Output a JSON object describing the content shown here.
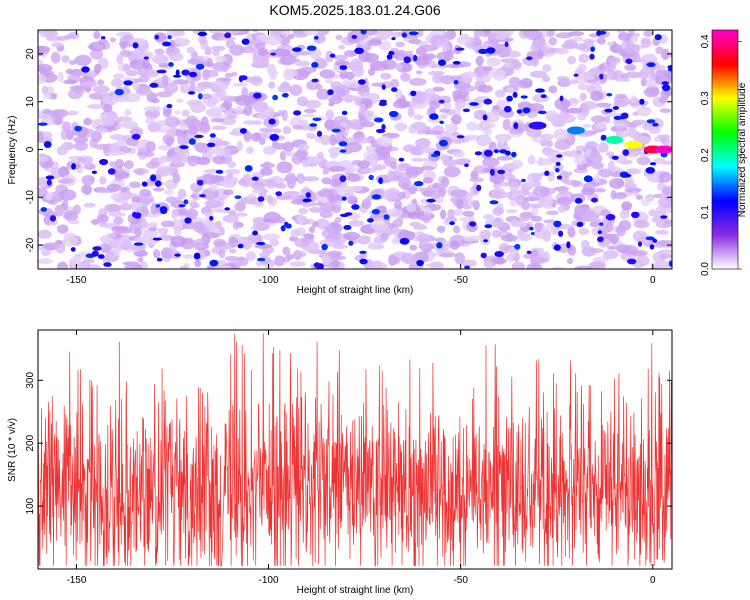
{
  "title": "KOM5.2025.183.01.24.G06",
  "chart_data": [
    {
      "type": "heatmap",
      "xlabel": "Height of straight line (km)",
      "ylabel": "Frequency (Hz)",
      "xlim": [
        -160,
        5
      ],
      "ylim": [
        -25,
        25
      ],
      "x_ticks": [
        -150,
        -100,
        -50,
        0
      ],
      "y_ticks": [
        -20,
        -10,
        0,
        10,
        20
      ],
      "colorbar": {
        "label": "Normalized spectral amplitude",
        "range": [
          0.0,
          0.42
        ],
        "ticks": [
          0.0,
          0.1,
          0.2,
          0.3,
          0.4
        ],
        "tick_labels": [
          "0.0",
          "0.1",
          "0.2",
          "0.3",
          "0.4"
        ],
        "colors": [
          "#ffffff",
          "#8a2be2",
          "#0000ff",
          "#00ffff",
          "#00ff00",
          "#ffff00",
          "#ff0000",
          "#ff00cc"
        ]
      },
      "features": [
        {
          "description": "noise-level blobs across plot",
          "amplitude": 0.05
        },
        {
          "description": "signal trail",
          "x": [
            -30,
            -20,
            -10,
            -5,
            0,
            3
          ],
          "y": [
            5,
            4,
            2,
            1,
            0,
            0
          ],
          "amplitude": [
            0.1,
            0.15,
            0.2,
            0.3,
            0.38,
            0.42
          ]
        }
      ]
    },
    {
      "type": "line",
      "xlabel": "Height of straight line (km)",
      "ylabel": "SNR (10 * v/v)",
      "xlim": [
        -160,
        5
      ],
      "ylim": [
        0,
        380
      ],
      "x_ticks": [
        -150,
        -100,
        -50,
        0
      ],
      "y_ticks": [
        100,
        200,
        300
      ],
      "series": [
        {
          "color": "#ee3333",
          "mean": 130,
          "min": 5,
          "max": 375
        }
      ]
    }
  ]
}
